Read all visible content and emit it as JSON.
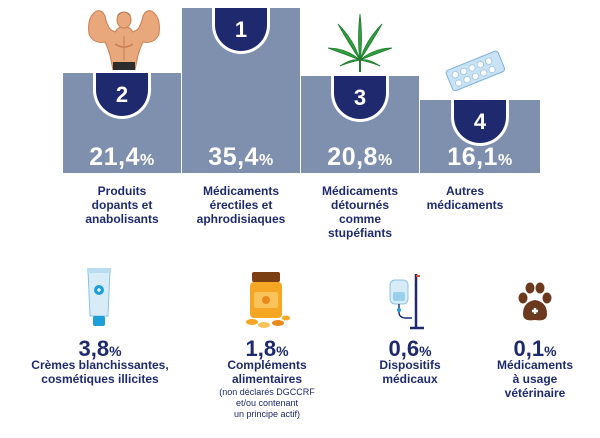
{
  "podium": [
    {
      "rank": "1",
      "value": "35,4",
      "unit": "%",
      "label_lines": [
        "Médicaments",
        "érectiles et",
        "aphrodisiaques"
      ]
    },
    {
      "rank": "2",
      "value": "21,4",
      "unit": "%",
      "label_lines": [
        "Produits",
        "dopants et",
        "anabolisants"
      ]
    },
    {
      "rank": "3",
      "value": "20,8",
      "unit": "%",
      "label_lines": [
        "Médicaments",
        "détournés",
        "comme",
        "stupéfiants"
      ]
    },
    {
      "rank": "4",
      "value": "16,1",
      "unit": "%",
      "label_lines": [
        "Autres",
        "médicaments"
      ]
    }
  ],
  "others": [
    {
      "value": "3,8",
      "unit": "%",
      "label_lines": [
        "Crèmes blanchissantes,",
        "cosmétiques illicites"
      ],
      "icon": "cream-tube-icon"
    },
    {
      "value": "1,8",
      "unit": "%",
      "label_lines": [
        "Compléments",
        "alimentaires"
      ],
      "note_lines": [
        "(non déclarés DGCCRF",
        "et/ou contenant",
        "un principe actif)"
      ],
      "icon": "supplement-jar-icon"
    },
    {
      "value": "0,6",
      "unit": "%",
      "label_lines": [
        "Dispositifs",
        "médicaux"
      ],
      "icon": "iv-drip-icon"
    },
    {
      "value": "0,1",
      "unit": "%",
      "label_lines": [
        "Médicaments",
        "à usage",
        "vétérinaire"
      ],
      "icon": "paw-cross-icon"
    }
  ],
  "colors": {
    "navy": "#1f2a6e",
    "block": "#7f8fae",
    "accent": "#f5a623"
  }
}
